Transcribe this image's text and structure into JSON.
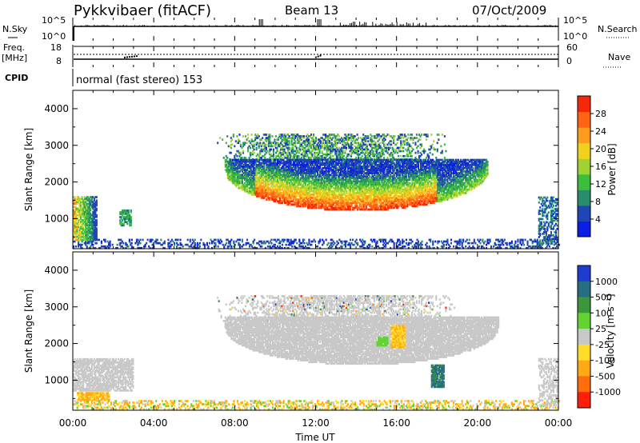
{
  "header": {
    "title": "Pykkvibaer (fitACF)",
    "beam": "Beam 13",
    "date": "07/Oct/2009"
  },
  "panels": {
    "nsky_label": "N.Sky",
    "nsearch_label": "N.Search",
    "freq_label": "Freq.",
    "freq_unit": "[MHz]",
    "nave_label": "Nave",
    "cpid_label": "CPID",
    "cpid_text": "normal (fast stereo) 153",
    "noise_ticks_left": [
      "10^5",
      "10^0"
    ],
    "noise_ticks_right": [
      "10^5",
      "10^0"
    ],
    "freq_ticks": [
      "18",
      "8"
    ],
    "nave_ticks": [
      "60",
      "0"
    ]
  },
  "colors": {
    "power": [
      "#0a1ee6",
      "#1e46b4",
      "#288c6e",
      "#3cbe3c",
      "#a0d232",
      "#f0d21e",
      "#ff9b1e",
      "#ff6414",
      "#f5280a"
    ],
    "velocity": [
      "#1e3cd2",
      "#286e82",
      "#3c963c",
      "#64d232",
      "#c8c8c8",
      "#ffdc28",
      "#ffaa14",
      "#ff6e0a",
      "#ff1e0a"
    ]
  },
  "chart_data": [
    {
      "type": "heatmap",
      "name": "power",
      "ylabel": "Slant Range [km]",
      "xlabel": "",
      "ylim": [
        180,
        4500
      ],
      "yticks": [
        "1000",
        "2000",
        "3000",
        "4000"
      ],
      "colorbar_label": "Power [dB]",
      "colorbar_ticks": [
        "4",
        "8",
        "12",
        "16",
        "20",
        "24",
        "28"
      ],
      "colorbar_range": [
        0,
        32
      ],
      "regions": [
        {
          "name": "main-echo-core",
          "x_range_h": [
            9.0,
            18.0
          ],
          "range_km": [
            1100,
            1600
          ],
          "level_db": 28
        },
        {
          "name": "main-echo-upper",
          "x_range_h": [
            7.5,
            20.5
          ],
          "range_km": [
            1600,
            2600
          ],
          "level_db": 10
        },
        {
          "name": "upper-band",
          "x_range_h": [
            7.0,
            18.5
          ],
          "range_km": [
            2600,
            3300
          ],
          "level_db": 8
        },
        {
          "name": "early-patch",
          "x_range_h": [
            0.0,
            1.2
          ],
          "range_km": [
            400,
            1600
          ],
          "level_db": 20
        },
        {
          "name": "near-range-band",
          "x_range_h": [
            0.0,
            24.0
          ],
          "range_km": [
            180,
            450
          ],
          "level_db": 6
        },
        {
          "name": "late-patch",
          "x_range_h": [
            23.0,
            23.9
          ],
          "range_km": [
            300,
            1600
          ],
          "level_db": 8
        }
      ]
    },
    {
      "type": "heatmap",
      "name": "velocity",
      "ylabel": "Slant Range [km]",
      "xlabel": "Time UT",
      "ylim": [
        180,
        4500
      ],
      "yticks": [
        "1000",
        "2000",
        "3000",
        "4000"
      ],
      "xticks": [
        "00:00",
        "04:00",
        "08:00",
        "12:00",
        "16:00",
        "20:00",
        "00:00"
      ],
      "colorbar_label": "Velocity [m s⁻¹]",
      "colorbar_ticks": [
        "1000",
        "500",
        "100",
        "25",
        "-25",
        "-100",
        "-500",
        "-1000"
      ],
      "regions": [
        {
          "name": "main-echo",
          "x_range_h": [
            7.5,
            21.0
          ],
          "range_km": [
            1300,
            2700
          ],
          "velocity_ms": 0
        },
        {
          "name": "upper-band",
          "x_range_h": [
            7.0,
            19.0
          ],
          "range_km": [
            2600,
            3300
          ],
          "velocity_ms": 0
        },
        {
          "name": "early-patch",
          "x_range_h": [
            0.0,
            3.0
          ],
          "range_km": [
            700,
            1600
          ],
          "velocity_ms": 0
        },
        {
          "name": "orange-patch",
          "x_range_h": [
            0.2,
            1.8
          ],
          "range_km": [
            450,
            650
          ],
          "velocity_ms": -300
        },
        {
          "name": "blue-patch",
          "x_range_h": [
            17.7,
            18.3
          ],
          "range_km": [
            800,
            1400
          ],
          "velocity_ms": 600
        }
      ]
    }
  ]
}
